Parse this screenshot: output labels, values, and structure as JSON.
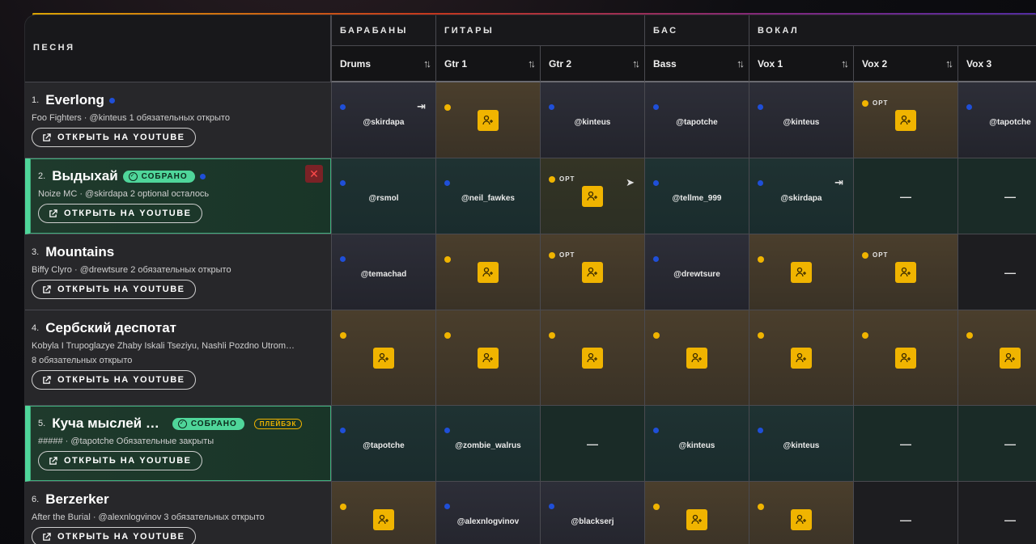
{
  "header": {
    "song_col": "ПЕСНЯ",
    "groups": [
      "БАРАБАНЫ",
      "ГИТАРЫ",
      "БАС",
      "ВОКАЛ"
    ],
    "columns": [
      "Drums",
      "Gtr 1",
      "Gtr 2",
      "Bass",
      "Vox 1",
      "Vox 2",
      "Vox 3"
    ]
  },
  "labels": {
    "youtube": "ОТКРЫТЬ НА YOUTUBE",
    "done": "СОБРАНО",
    "playback": "ПЛЕЙБЭК",
    "opt": "OPT",
    "dash": "—"
  },
  "songs": [
    {
      "num": "1.",
      "title": "Everlong",
      "artist": "Foo Fighters · @kinteus  1 обязательных открыто"
    },
    {
      "num": "2.",
      "title": "Выдыхай",
      "artist": "Noize MC · @skirdapa  2 optional осталось"
    },
    {
      "num": "3.",
      "title": "Mountains",
      "artist": "Biffy Clyro · @drewtsure  2 обязательных открыто"
    },
    {
      "num": "4.",
      "title": "Сербский деспотат",
      "artist": "Kobyla I Trupoglazye Zhaby Iskali Tseziyu, Nashli Pozdno Utrom…",
      "extra": "8 обязательных открыто"
    },
    {
      "num": "5.",
      "title": "Куча мыслей …",
      "artist": "##### · @tapotche  Обязательные закрыты"
    },
    {
      "num": "6.",
      "title": "Berzerker",
      "artist": "After the Burial · @alexnlogvinov  3 обязательных открыто"
    }
  ],
  "cells": {
    "r1": [
      "@skirdapa",
      "",
      "@kinteus",
      "@tapotche",
      "@kinteus",
      "",
      "@tapotche"
    ],
    "r2": [
      "@rsmol",
      "@neil_fawkes",
      "",
      "@tellme_999",
      "@skirdapa",
      "—",
      "—"
    ],
    "r3": [
      "@temachad",
      "",
      "",
      "@drewtsure",
      "",
      "",
      "—"
    ],
    "r5": [
      "@tapotche",
      "@zombie_walrus",
      "—",
      "@kinteus",
      "@kinteus",
      "—",
      "—"
    ],
    "r6": [
      "",
      "@alexnlogvinov",
      "@blackserj",
      "",
      "",
      "—",
      "—"
    ]
  },
  "colors": {
    "accent_green": "#4fd69a",
    "accent_yellow": "#f0b400",
    "dot_blue": "#1f4fd8"
  }
}
